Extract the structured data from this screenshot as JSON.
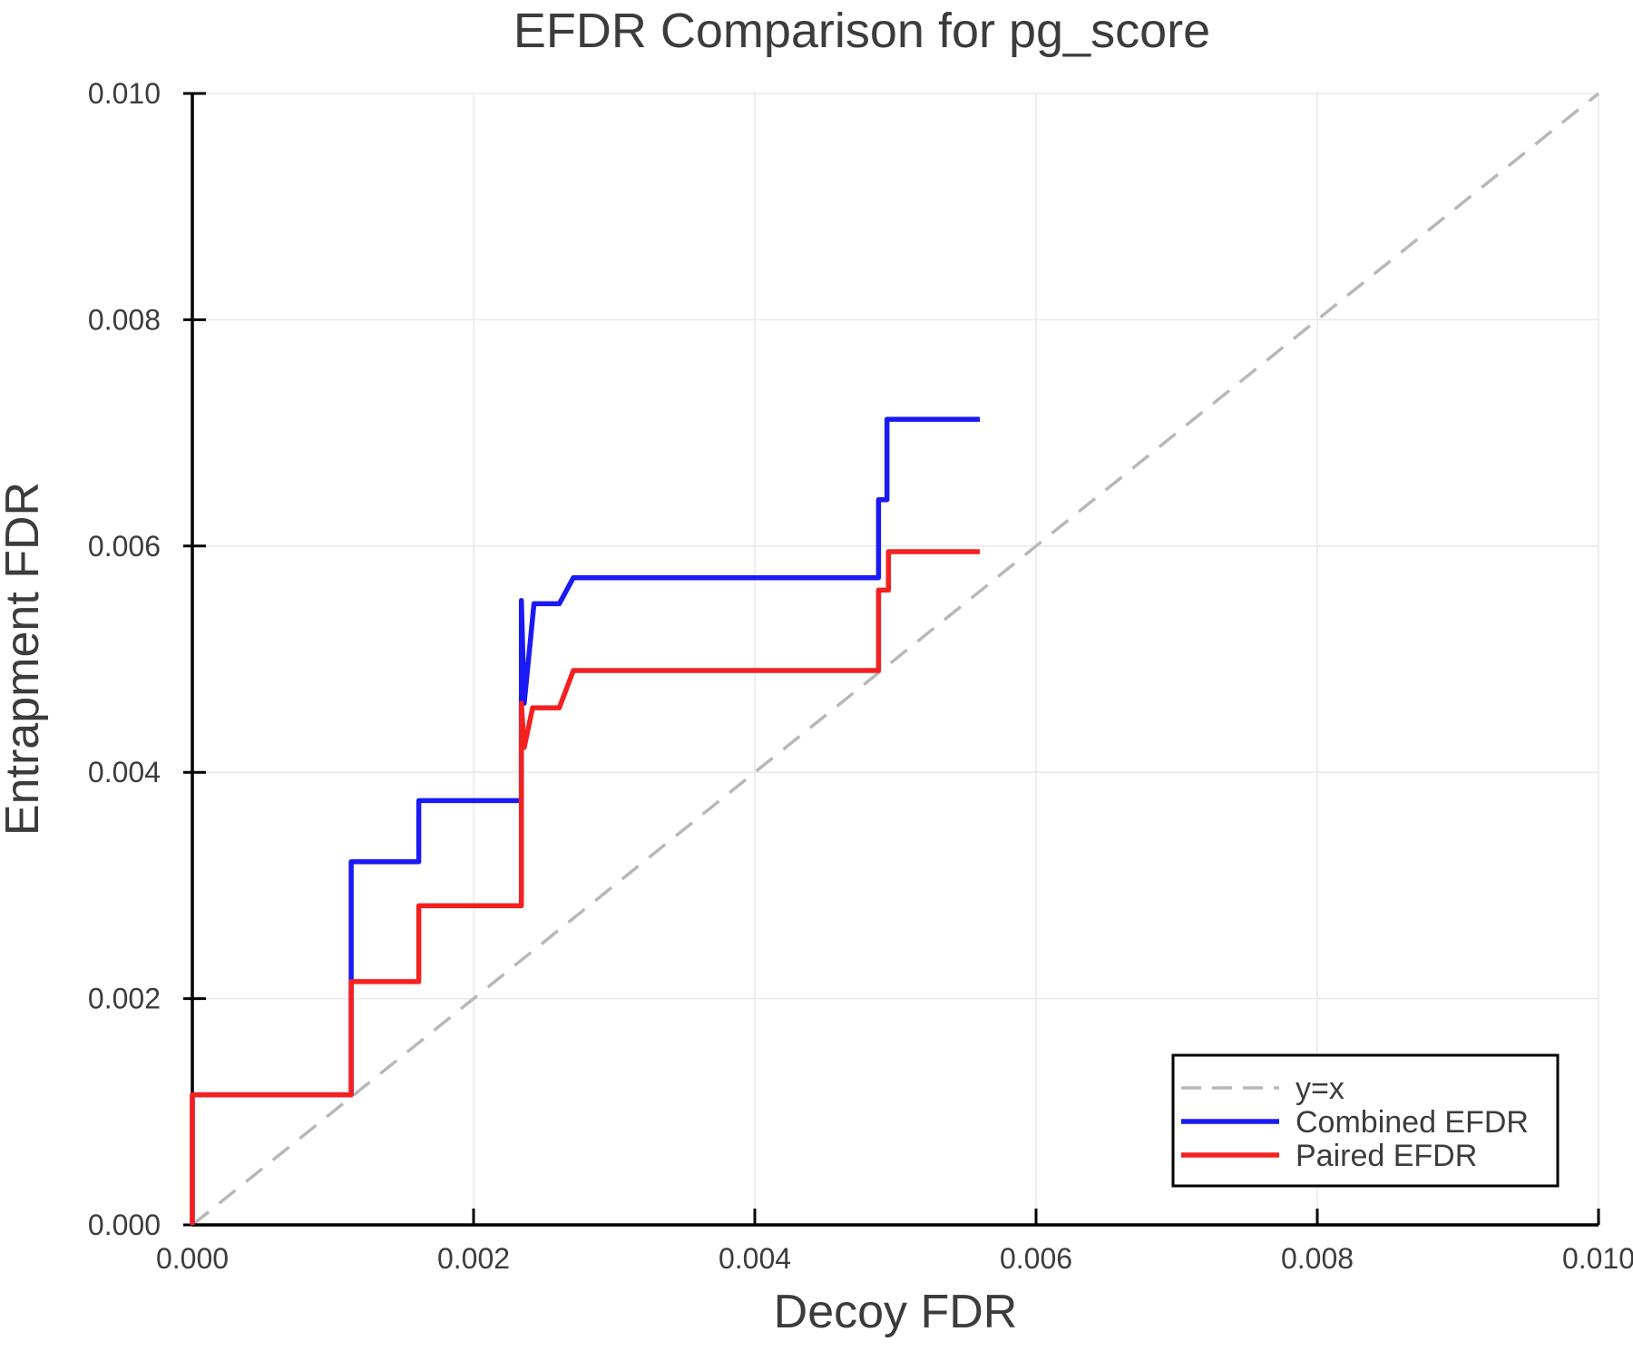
{
  "title": "EFDR Comparison for pg_score",
  "axes": {
    "x": {
      "label": "Decoy FDR",
      "min": 0.0,
      "max": 0.01,
      "tick_values": [
        0.0,
        0.002,
        0.004,
        0.006,
        0.008,
        0.01
      ],
      "tick_labels": [
        "0.000",
        "0.002",
        "0.004",
        "0.006",
        "0.008",
        "0.010"
      ]
    },
    "y": {
      "label": "Entrapment FDR",
      "min": 0.0,
      "max": 0.01,
      "tick_values": [
        0.0,
        0.002,
        0.004,
        0.006,
        0.008,
        0.01
      ],
      "tick_labels": [
        "0.000",
        "0.002",
        "0.004",
        "0.006",
        "0.008",
        "0.010"
      ]
    }
  },
  "colors": {
    "combined": "#1a1af5",
    "paired": "#f52020",
    "identity": "#b8b8b8",
    "grid": "#e9e9e9",
    "spine": "#000000",
    "text": "#3c3c3c"
  },
  "legend": {
    "items": [
      {
        "label": "y=x",
        "color": "#b8b8b8",
        "dashed": true
      },
      {
        "label": "Combined EFDR",
        "color": "#1a1af5",
        "dashed": false
      },
      {
        "label": "Paired EFDR",
        "color": "#f52020",
        "dashed": false
      }
    ]
  },
  "chart_data": {
    "type": "line",
    "title": "EFDR Comparison for pg_score",
    "xlabel": "Decoy FDR",
    "ylabel": "Entrapment FDR",
    "xlim": [
      0.0,
      0.01
    ],
    "ylim": [
      0.0,
      0.01
    ],
    "grid": true,
    "legend_position": "bottom-right",
    "reference_line": {
      "name": "y=x",
      "from": [
        0.0,
        0.0
      ],
      "to": [
        0.01,
        0.01
      ],
      "style": "dashed",
      "color": "#b8b8b8"
    },
    "series": [
      {
        "name": "Combined EFDR",
        "color": "#1a1af5",
        "points": [
          [
            0.0,
            0.0
          ],
          [
            0.0,
            0.00115
          ],
          [
            0.00113,
            0.00115
          ],
          [
            0.00113,
            0.00321
          ],
          [
            0.00161,
            0.00321
          ],
          [
            0.00161,
            0.00375
          ],
          [
            0.00234,
            0.00375
          ],
          [
            0.00234,
            0.00552
          ],
          [
            0.00236,
            0.00461
          ],
          [
            0.00243,
            0.00549
          ],
          [
            0.00261,
            0.00549
          ],
          [
            0.00271,
            0.00572
          ],
          [
            0.00488,
            0.00572
          ],
          [
            0.00488,
            0.00641
          ],
          [
            0.00494,
            0.00641
          ],
          [
            0.00494,
            0.00712
          ],
          [
            0.0056,
            0.00712
          ]
        ]
      },
      {
        "name": "Paired EFDR",
        "color": "#f52020",
        "points": [
          [
            0.0,
            0.0
          ],
          [
            0.0,
            0.00115
          ],
          [
            0.00113,
            0.00115
          ],
          [
            0.00113,
            0.00215
          ],
          [
            0.00161,
            0.00215
          ],
          [
            0.00161,
            0.00282
          ],
          [
            0.00234,
            0.00282
          ],
          [
            0.00234,
            0.00461
          ],
          [
            0.00236,
            0.00422
          ],
          [
            0.00242,
            0.00457
          ],
          [
            0.00261,
            0.00457
          ],
          [
            0.00271,
            0.0049
          ],
          [
            0.00488,
            0.0049
          ],
          [
            0.00488,
            0.00561
          ],
          [
            0.00495,
            0.00561
          ],
          [
            0.00495,
            0.00595
          ],
          [
            0.0056,
            0.00595
          ]
        ]
      }
    ]
  }
}
